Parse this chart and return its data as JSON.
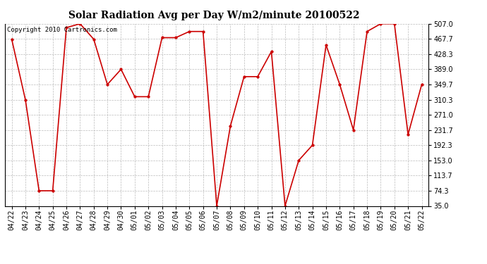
{
  "title": "Solar Radiation Avg per Day W/m2/minute 20100522",
  "copyright": "Copyright 2010 Cartronics.com",
  "x_labels": [
    "04/22",
    "04/23",
    "04/24",
    "04/25",
    "04/26",
    "04/27",
    "04/28",
    "04/29",
    "04/30",
    "05/01",
    "05/02",
    "05/03",
    "05/04",
    "05/05",
    "05/06",
    "05/07",
    "05/08",
    "05/09",
    "05/10",
    "05/11",
    "05/12",
    "05/13",
    "05/14",
    "05/15",
    "05/16",
    "05/17",
    "05/18",
    "05/19",
    "05/20",
    "05/21",
    "05/22"
  ],
  "y_values": [
    467.0,
    310.3,
    74.3,
    74.3,
    497.0,
    507.0,
    467.0,
    349.7,
    389.0,
    318.0,
    318.0,
    471.0,
    471.0,
    487.0,
    487.0,
    35.0,
    242.0,
    370.0,
    370.0,
    435.0,
    35.0,
    153.0,
    192.3,
    452.0,
    349.7,
    231.7,
    487.0,
    507.0,
    507.0,
    220.0,
    349.7
  ],
  "y_ticks": [
    35.0,
    74.3,
    113.7,
    153.0,
    192.3,
    231.7,
    271.0,
    310.3,
    349.7,
    389.0,
    428.3,
    467.7,
    507.0
  ],
  "y_min": 35.0,
  "y_max": 507.0,
  "line_color": "#cc0000",
  "marker": "o",
  "marker_size": 2.5,
  "line_width": 1.2,
  "bg_color": "#ffffff",
  "grid_color": "#bbbbbb",
  "title_fontsize": 10,
  "tick_fontsize": 7,
  "copyright_fontsize": 6.5
}
